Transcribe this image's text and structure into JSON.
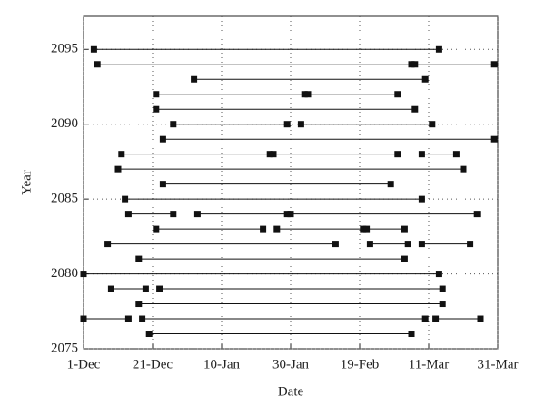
{
  "chart_data": {
    "type": "range",
    "xlabel": "Date",
    "ylabel": "Year",
    "xlim": [
      0,
      120
    ],
    "xticks": [
      {
        "value": 0,
        "label": "1-Dec"
      },
      {
        "value": 20,
        "label": "21-Dec"
      },
      {
        "value": 40,
        "label": "10-Jan"
      },
      {
        "value": 60,
        "label": "30-Jan"
      },
      {
        "value": 80,
        "label": "19-Feb"
      },
      {
        "value": 100,
        "label": "11-Mar"
      },
      {
        "value": 120,
        "label": "31-Mar"
      }
    ],
    "ylim": [
      2075,
      2097.2
    ],
    "yticks": [
      2075,
      2080,
      2085,
      2090,
      2095
    ],
    "grid": true,
    "color": "#111111",
    "rows": [
      {
        "year": 2095,
        "segments": [
          [
            3,
            103
          ]
        ]
      },
      {
        "year": 2094,
        "segments": [
          [
            4,
            95
          ],
          [
            96,
            119
          ]
        ]
      },
      {
        "year": 2093,
        "segments": [
          [
            32,
            99
          ]
        ]
      },
      {
        "year": 2092,
        "segments": [
          [
            21,
            64
          ],
          [
            65,
            91
          ]
        ]
      },
      {
        "year": 2091,
        "segments": [
          [
            21,
            96
          ]
        ]
      },
      {
        "year": 2090,
        "segments": [
          [
            26,
            59
          ],
          [
            63,
            101
          ]
        ]
      },
      {
        "year": 2089,
        "segments": [
          [
            23,
            119
          ]
        ]
      },
      {
        "year": 2088,
        "segments": [
          [
            11,
            54
          ],
          [
            55,
            91
          ],
          [
            98,
            108
          ]
        ]
      },
      {
        "year": 2087,
        "segments": [
          [
            10,
            110
          ]
        ]
      },
      {
        "year": 2086,
        "segments": [
          [
            23,
            89
          ]
        ]
      },
      {
        "year": 2085,
        "segments": [
          [
            12,
            98
          ]
        ]
      },
      {
        "year": 2084,
        "segments": [
          [
            13,
            26
          ],
          [
            33,
            59
          ],
          [
            60,
            114
          ]
        ]
      },
      {
        "year": 2083,
        "segments": [
          [
            21,
            52
          ],
          [
            56,
            81
          ],
          [
            82,
            93
          ]
        ]
      },
      {
        "year": 2082,
        "segments": [
          [
            7,
            73
          ],
          [
            83,
            94
          ],
          [
            98,
            112
          ]
        ]
      },
      {
        "year": 2081,
        "segments": [
          [
            16,
            93
          ]
        ]
      },
      {
        "year": 2080,
        "segments": [
          [
            0,
            103
          ]
        ]
      },
      {
        "year": 2079,
        "segments": [
          [
            8,
            18
          ],
          [
            22,
            104
          ]
        ]
      },
      {
        "year": 2078,
        "segments": [
          [
            16,
            104
          ]
        ]
      },
      {
        "year": 2077,
        "segments": [
          [
            0,
            13
          ],
          [
            17,
            99
          ],
          [
            102,
            115
          ]
        ]
      },
      {
        "year": 2076,
        "segments": [
          [
            19,
            95
          ]
        ]
      }
    ]
  }
}
